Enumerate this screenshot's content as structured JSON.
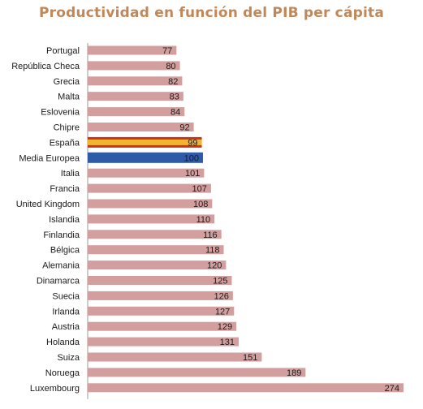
{
  "chart_data": {
    "type": "bar",
    "orientation": "horizontal",
    "title": "Productividad en función del PIB per cápita",
    "xlabel": "",
    "ylabel": "",
    "categories": [
      "Portugal",
      "República Checa",
      "Grecia",
      "Malta",
      "Eslovenia",
      "Chipre",
      "España",
      "Media Europea",
      "Italia",
      "Francia",
      "United Kingdom",
      "Islandia",
      "Finlandia",
      "Bélgica",
      "Alemania",
      "Dinamarca",
      "Suecia",
      "Irlanda",
      "Austria",
      "Holanda",
      "Suiza",
      "Noruega",
      "Luxembourg"
    ],
    "values": [
      77,
      80,
      82,
      83,
      84,
      92,
      99,
      100,
      101,
      107,
      108,
      110,
      116,
      118,
      120,
      125,
      126,
      127,
      129,
      131,
      151,
      189,
      274
    ],
    "xlim": [
      0,
      274
    ],
    "grid": false,
    "legend": "none",
    "colors": {
      "bar": "#d39e9e",
      "highlight_spain_red": "#c8321f",
      "highlight_spain_yellow": "#f2b530",
      "highlight_media_blue": "#2f5aa8",
      "title": "#c0885a",
      "axis": "#9a9a9a"
    },
    "highlights": {
      "España": "flag-spain",
      "Media Europea": "flag-eu"
    }
  }
}
